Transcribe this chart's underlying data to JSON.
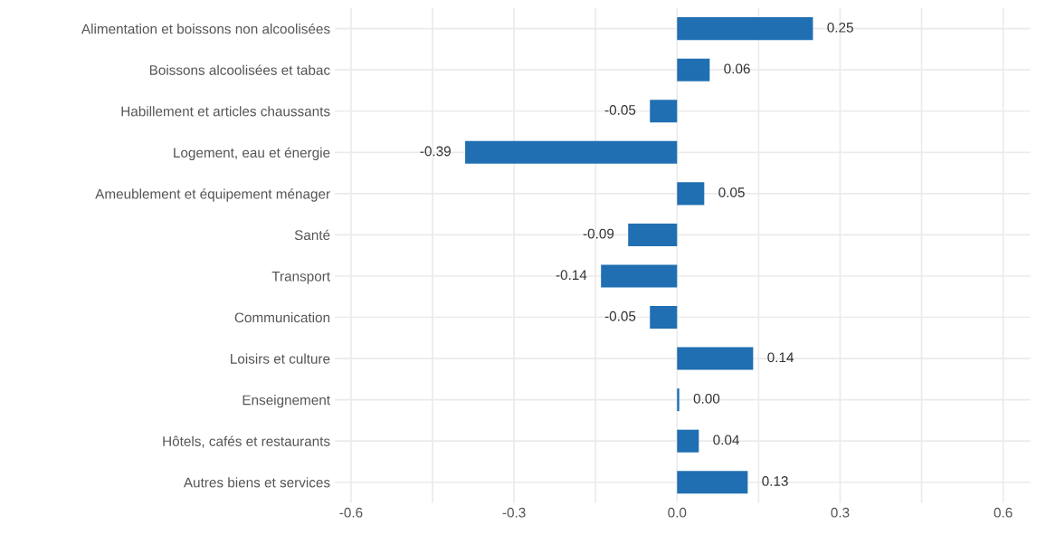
{
  "chart_data": {
    "type": "bar",
    "orientation": "horizontal",
    "categories": [
      "Alimentation et boissons non alcoolisées",
      "Boissons alcoolisées et tabac",
      "Habillement et articles chaussants",
      "Logement, eau et énergie",
      "Ameublement et équipement ménager",
      "Santé",
      "Transport",
      "Communication",
      "Loisirs et culture",
      "Enseignement",
      "Hôtels, cafés et restaurants",
      "Autres biens et services"
    ],
    "values": [
      0.25,
      0.06,
      -0.05,
      -0.39,
      0.05,
      -0.09,
      -0.14,
      -0.05,
      0.14,
      0.004,
      0.04,
      0.13
    ],
    "value_labels": [
      "0.25",
      "0.06",
      "-0.05",
      "-0.39",
      "0.05",
      "-0.09",
      "-0.14",
      "-0.05",
      "0.14",
      "0.00",
      "0.04",
      "0.13"
    ],
    "color": "#1f6fb2",
    "xlim": [
      -0.63,
      0.65
    ],
    "xticks": [
      -0.6,
      {
        "value": -0.45,
        "label": null
      },
      -0.3,
      {
        "value": -0.15,
        "label": null
      },
      {
        "value": 0,
        "label": "0.0"
      },
      {
        "value": 0.15,
        "label": null
      },
      0.3,
      {
        "value": 0.45,
        "label": null
      },
      0.6
    ],
    "grid": true
  }
}
